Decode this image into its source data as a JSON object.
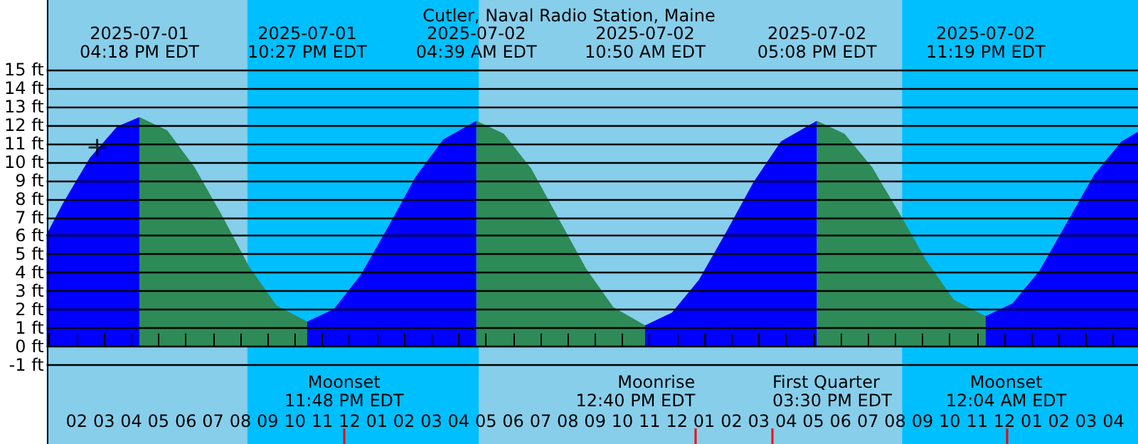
{
  "chart_data": {
    "type": "area",
    "title": "Cutler, Naval Radio Station, Maine",
    "xlim": [
      "2025-07-01T12:54",
      "2025-07-03T04:54"
    ],
    "xticks": [
      {
        "value": "2025-07-01T13:00",
        "label": null
      },
      {
        "value": "2025-07-01T14:00",
        "label": "02"
      },
      {
        "value": "2025-07-01T15:00",
        "label": "03"
      },
      {
        "value": "2025-07-01T16:00",
        "label": "04"
      },
      {
        "value": "2025-07-01T17:00",
        "label": "05"
      },
      {
        "value": "2025-07-01T18:00",
        "label": "06"
      },
      {
        "value": "2025-07-01T19:00",
        "label": "07"
      },
      {
        "value": "2025-07-01T20:00",
        "label": "08"
      },
      {
        "value": "2025-07-01T21:00",
        "label": "09"
      },
      {
        "value": "2025-07-01T22:00",
        "label": "10"
      },
      {
        "value": "2025-07-01T23:00",
        "label": "11"
      },
      {
        "value": "2025-07-02T00:00",
        "label": "12"
      },
      {
        "value": "2025-07-02T01:00",
        "label": "01"
      },
      {
        "value": "2025-07-02T02:00",
        "label": "02"
      },
      {
        "value": "2025-07-02T03:00",
        "label": "03"
      },
      {
        "value": "2025-07-02T04:00",
        "label": "04"
      },
      {
        "value": "2025-07-02T05:00",
        "label": "05"
      },
      {
        "value": "2025-07-02T06:00",
        "label": "06"
      },
      {
        "value": "2025-07-02T07:00",
        "label": "07"
      },
      {
        "value": "2025-07-02T08:00",
        "label": "08"
      },
      {
        "value": "2025-07-02T09:00",
        "label": "09"
      },
      {
        "value": "2025-07-02T10:00",
        "label": "10"
      },
      {
        "value": "2025-07-02T11:00",
        "label": "11"
      },
      {
        "value": "2025-07-02T12:00",
        "label": "12"
      },
      {
        "value": "2025-07-02T13:00",
        "label": "01"
      },
      {
        "value": "2025-07-02T14:00",
        "label": "02"
      },
      {
        "value": "2025-07-02T15:00",
        "label": "03"
      },
      {
        "value": "2025-07-02T16:00",
        "label": "04"
      },
      {
        "value": "2025-07-02T17:00",
        "label": "05"
      },
      {
        "value": "2025-07-02T18:00",
        "label": "06"
      },
      {
        "value": "2025-07-02T19:00",
        "label": "07"
      },
      {
        "value": "2025-07-02T20:00",
        "label": "08"
      },
      {
        "value": "2025-07-02T21:00",
        "label": "09"
      },
      {
        "value": "2025-07-02T22:00",
        "label": "10"
      },
      {
        "value": "2025-07-02T23:00",
        "label": "11"
      },
      {
        "value": "2025-07-03T00:00",
        "label": "12"
      },
      {
        "value": "2025-07-03T01:00",
        "label": "01"
      },
      {
        "value": "2025-07-03T02:00",
        "label": "02"
      },
      {
        "value": "2025-07-03T03:00",
        "label": "03"
      },
      {
        "value": "2025-07-03T04:00",
        "label": "04"
      }
    ],
    "ylim": [
      -5.3,
      18.8
    ],
    "yticks": [
      {
        "value": -1,
        "label": "-1 ft"
      },
      {
        "value": 0,
        "label": "0 ft"
      },
      {
        "value": 1,
        "label": "1 ft"
      },
      {
        "value": 2,
        "label": "2 ft"
      },
      {
        "value": 3,
        "label": "3 ft"
      },
      {
        "value": 4,
        "label": "4 ft"
      },
      {
        "value": 5,
        "label": "5 ft"
      },
      {
        "value": 6,
        "label": "6 ft"
      },
      {
        "value": 7,
        "label": "7 ft"
      },
      {
        "value": 8,
        "label": "8 ft"
      },
      {
        "value": 9,
        "label": "9 ft"
      },
      {
        "value": 10,
        "label": "10 ft"
      },
      {
        "value": 11,
        "label": "11 ft"
      },
      {
        "value": 12,
        "label": "12 ft"
      },
      {
        "value": 13,
        "label": "13 ft"
      },
      {
        "value": 14,
        "label": "14 ft"
      },
      {
        "value": 15,
        "label": "15 ft"
      }
    ],
    "grid": "y",
    "bands": [
      {
        "axis": "x",
        "from": "2025-07-01T12:54",
        "to": "2025-07-01T20:15",
        "color": "#87ceeb"
      },
      {
        "axis": "x",
        "from": "2025-07-01T20:15",
        "to": "2025-07-02T04:45",
        "color": "#00bfff"
      },
      {
        "axis": "x",
        "from": "2025-07-02T04:45",
        "to": "2025-07-02T20:15",
        "color": "#87ceeb"
      },
      {
        "axis": "x",
        "from": "2025-07-02T20:15",
        "to": "2025-07-03T04:54",
        "color": "#00bfff"
      }
    ],
    "ref_lines": [
      {
        "axis": "x",
        "value": "2025-07-01T23:48",
        "label": "Moonset\n11:48 PM EDT",
        "color": "#ff0000"
      },
      {
        "axis": "x",
        "value": "2025-07-02T12:40",
        "label": "Moonrise\n12:40 PM EDT",
        "color": "#ff0000"
      },
      {
        "axis": "x",
        "value": "2025-07-02T15:30",
        "label": "First Quarter\n03:30 PM EDT",
        "color": "#ff0000"
      },
      {
        "axis": "x",
        "value": "2025-07-03T00:04",
        "label": "Moonset\n12:04 AM EDT",
        "color": "#ff0000"
      }
    ],
    "annotations": [
      "2025-07-01\n04:18 PM EDT",
      "2025-07-01\n10:27 PM EDT",
      "2025-07-02\n04:39 AM EDT",
      "2025-07-02\n10:50 AM EDT",
      "2025-07-02\n05:08 PM EDT",
      "2025-07-02\n11:19 PM EDT"
    ],
    "series": [
      {
        "color": "#0000ff",
        "x": [
          "2025-07-01T12:54",
          "2025-07-01T13:30",
          "2025-07-01T14:30",
          "2025-07-01T15:30",
          "2025-07-01T16:18"
        ],
        "values": [
          6.0,
          7.7,
          10.2,
          11.9,
          12.4
        ]
      },
      {
        "color": "#2e8b57",
        "x": [
          "2025-07-01T16:18",
          "2025-07-01T17:18",
          "2025-07-01T18:18",
          "2025-07-01T19:18",
          "2025-07-01T20:18",
          "2025-07-01T21:18",
          "2025-07-01T22:27"
        ],
        "values": [
          12.4,
          11.7,
          9.7,
          7.1,
          4.3,
          2.2,
          1.3
        ]
      },
      {
        "color": "#0000ff",
        "x": [
          "2025-07-01T22:27",
          "2025-07-01T23:27",
          "2025-07-02T00:27",
          "2025-07-02T01:27",
          "2025-07-02T02:27",
          "2025-07-02T03:27",
          "2025-07-02T04:39"
        ],
        "values": [
          1.3,
          2.0,
          3.9,
          6.5,
          9.2,
          11.2,
          12.2
        ]
      },
      {
        "color": "#2e8b57",
        "x": [
          "2025-07-02T04:39",
          "2025-07-02T05:39",
          "2025-07-02T06:39",
          "2025-07-02T07:39",
          "2025-07-02T08:39",
          "2025-07-02T09:39",
          "2025-07-02T10:50"
        ],
        "values": [
          12.2,
          11.5,
          9.6,
          6.9,
          4.2,
          2.1,
          1.1
        ]
      },
      {
        "color": "#0000ff",
        "x": [
          "2025-07-02T10:50",
          "2025-07-02T11:50",
          "2025-07-02T12:50",
          "2025-07-02T13:50",
          "2025-07-02T14:50",
          "2025-07-02T15:50",
          "2025-07-02T17:08"
        ],
        "values": [
          1.1,
          1.8,
          3.6,
          6.2,
          8.9,
          11.1,
          12.2
        ]
      },
      {
        "color": "#2e8b57",
        "x": [
          "2025-07-02T17:08",
          "2025-07-02T18:08",
          "2025-07-02T19:08",
          "2025-07-02T20:08",
          "2025-07-02T21:08",
          "2025-07-02T22:08",
          "2025-07-02T23:19"
        ],
        "values": [
          12.2,
          11.5,
          9.7,
          7.2,
          4.6,
          2.5,
          1.6
        ]
      },
      {
        "color": "#0000ff",
        "x": [
          "2025-07-02T23:19",
          "2025-07-03T00:19",
          "2025-07-03T01:19",
          "2025-07-03T02:19",
          "2025-07-03T03:19",
          "2025-07-03T04:19",
          "2025-07-03T04:54"
        ],
        "values": [
          1.6,
          2.3,
          4.1,
          6.7,
          9.3,
          11.1,
          11.6
        ]
      },
      {
        "type": "scatter",
        "marker": "cross",
        "color": "#000000",
        "x": [
          "2025-07-01T14:45"
        ],
        "values": [
          10.8
        ]
      }
    ]
  }
}
